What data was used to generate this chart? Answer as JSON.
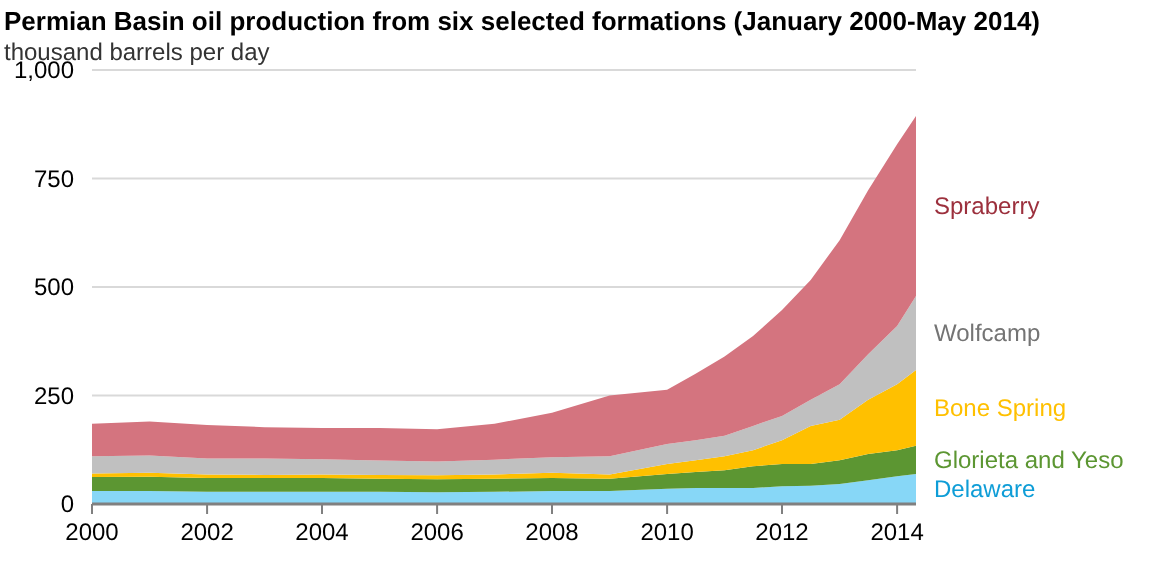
{
  "chart_data": {
    "type": "area",
    "stacked": true,
    "title": "Permian Basin oil production from six selected formations (January 2000-May 2014)",
    "subtitle": "thousand barrels per day",
    "x": [
      "2000-01",
      "2001-01",
      "2002-01",
      "2003-01",
      "2004-01",
      "2005-01",
      "2006-01",
      "2007-01",
      "2008-01",
      "2009-01",
      "2010-01",
      "2010-07",
      "2011-01",
      "2011-07",
      "2012-01",
      "2012-07",
      "2013-01",
      "2013-07",
      "2014-01",
      "2014-05"
    ],
    "series": [
      {
        "name": "Delaware",
        "color": "#87d7f7",
        "values": [
          30,
          30,
          28,
          28,
          28,
          28,
          27,
          28,
          30,
          30,
          35,
          37,
          37,
          37,
          41,
          42,
          46,
          55,
          64,
          69
        ]
      },
      {
        "name": "Glorieta and Yeso",
        "color": "#5c9632",
        "values": [
          32,
          33,
          32,
          32,
          32,
          30,
          30,
          30,
          30,
          28,
          34,
          37,
          41,
          50,
          51,
          50,
          55,
          60,
          60,
          65
        ]
      },
      {
        "name": "Bone Spring",
        "color": "#ffc000",
        "values": [
          8,
          9,
          8,
          7,
          8,
          9,
          9,
          10,
          12,
          10,
          23,
          27,
          32,
          37,
          55,
          88,
          93,
          125,
          152,
          175
        ]
      },
      {
        "name": "Wolfcamp",
        "color": "#c0c0c0",
        "values": [
          40,
          40,
          37,
          38,
          35,
          33,
          32,
          34,
          36,
          42,
          46,
          46,
          47,
          56,
          56,
          60,
          82,
          105,
          134,
          170
        ]
      },
      {
        "name": "Spraberry",
        "color": "#d4747f",
        "values": [
          75,
          78,
          77,
          72,
          72,
          75,
          74,
          83,
          102,
          140,
          125,
          153,
          183,
          207,
          244,
          276,
          332,
          378,
          419,
          415
        ]
      }
    ],
    "xlim": [
      "2000-01",
      "2014-05"
    ],
    "xticks": [
      {
        "value": "2000-01",
        "label": "2000"
      },
      {
        "value": "2002-01",
        "label": "2002"
      },
      {
        "value": "2004-01",
        "label": "2004"
      },
      {
        "value": "2006-01",
        "label": "2006"
      },
      {
        "value": "2008-01",
        "label": "2008"
      },
      {
        "value": "2010-01",
        "label": "2010"
      },
      {
        "value": "2012-01",
        "label": "2012"
      },
      {
        "value": "2014-01",
        "label": "2014"
      }
    ],
    "ylim": [
      0,
      1000
    ],
    "yticks": [
      0,
      250,
      500,
      750,
      {
        "value": 1000,
        "label": "1,000"
      }
    ],
    "grid": "y"
  }
}
